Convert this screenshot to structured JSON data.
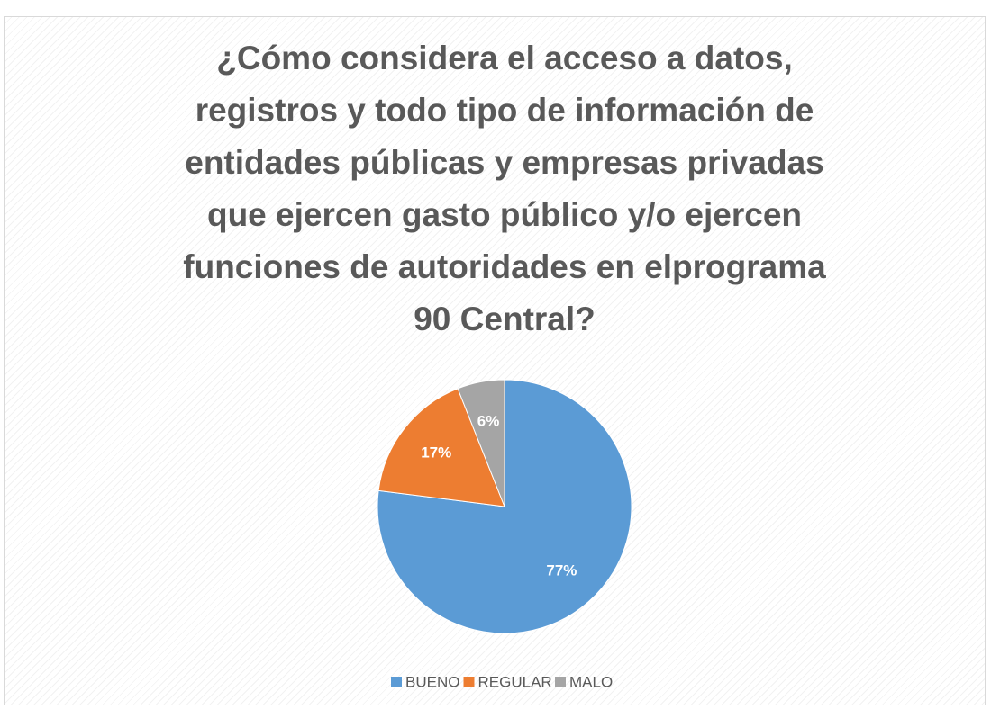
{
  "chart_data": {
    "type": "pie",
    "title": "¿Cómo considera el acceso a datos, registros y todo tipo de información de entidades públicas y empresas privadas que ejercen gasto público y/o ejercen funciones de autoridades en elprograma 90 Central?",
    "categories": [
      "BUENO",
      "REGULAR",
      "MALO"
    ],
    "values": [
      77,
      17,
      6
    ],
    "value_labels": [
      "77%",
      "17%",
      "6%"
    ],
    "colors": [
      "#5b9bd5",
      "#ed7d31",
      "#a5a5a5"
    ],
    "legend": "bottom"
  }
}
